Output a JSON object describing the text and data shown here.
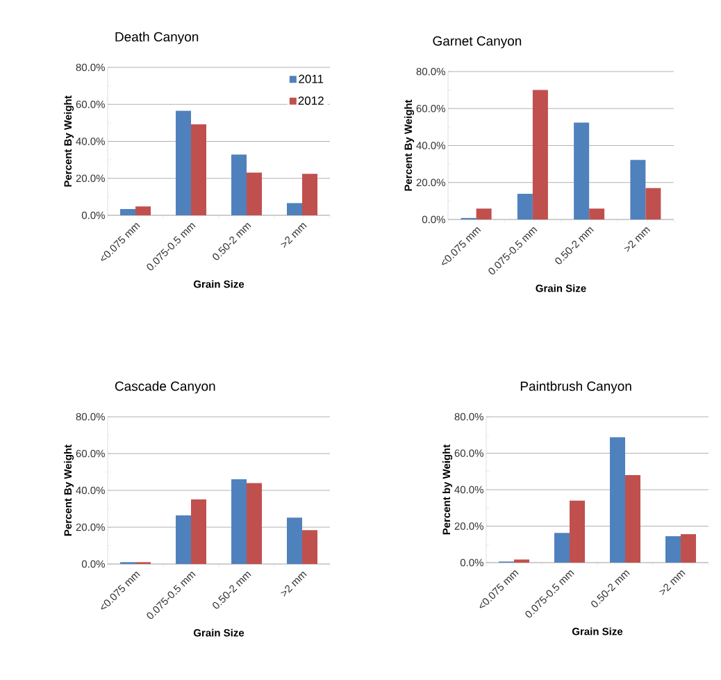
{
  "chart_data": [
    {
      "type": "bar",
      "title": "Death Canyon",
      "xlabel": "Grain Size",
      "ylabel": "Percent By Weight",
      "categories": [
        "<0.075 mm",
        "0.075-0.5 mm",
        "0.50-2 mm",
        ">2 mm"
      ],
      "ylim": [
        0,
        80
      ],
      "yticks": [
        {
          "value": 0,
          "label": "0.0%"
        },
        {
          "value": 10,
          "label": null
        },
        {
          "value": 20,
          "label": "20.0%"
        },
        {
          "value": 30,
          "label": null
        },
        {
          "value": 40,
          "label": "40.0%"
        },
        {
          "value": 50,
          "label": null
        },
        {
          "value": 60,
          "label": "60.0%"
        },
        {
          "value": 70,
          "label": null
        },
        {
          "value": 80,
          "label": "80.0%"
        }
      ],
      "grid": "y",
      "legend": "top right",
      "series": [
        {
          "name": "2011",
          "color": "#4f81bd",
          "values": [
            3.4,
            56.5,
            32.9,
            6.6
          ]
        },
        {
          "name": "2012",
          "color": "#c0504d",
          "values": [
            4.8,
            49.2,
            23.1,
            22.4
          ]
        }
      ]
    },
    {
      "type": "bar",
      "title": "Garnet Canyon",
      "xlabel": "Grain Size",
      "ylabel": "Percent By Weight",
      "categories": [
        "<0.075 mm",
        "0.075-0.5 mm",
        "0.50-2 mm",
        ">2 mm"
      ],
      "ylim": [
        0,
        80
      ],
      "yticks": [
        {
          "value": 0,
          "label": "0.0%"
        },
        {
          "value": 10,
          "label": null
        },
        {
          "value": 20,
          "label": "20.0%"
        },
        {
          "value": 30,
          "label": null
        },
        {
          "value": 40,
          "label": "40.0%"
        },
        {
          "value": 50,
          "label": null
        },
        {
          "value": 60,
          "label": "60.0%"
        },
        {
          "value": 70,
          "label": null
        },
        {
          "value": 80,
          "label": "80.0%"
        }
      ],
      "grid": "y",
      "series": [
        {
          "color": "#4f81bd",
          "values": [
            0.8,
            13.9,
            52.4,
            32.2
          ]
        },
        {
          "color": "#c0504d",
          "values": [
            5.9,
            70.0,
            5.9,
            17.0
          ]
        }
      ]
    },
    {
      "type": "bar",
      "title": "Cascade Canyon",
      "xlabel": "Grain Size",
      "ylabel": "Percent By Weight",
      "categories": [
        "<0.075 mm",
        "0.075-0.5 mm",
        "0.50-2 mm",
        ">2 mm"
      ],
      "ylim": [
        0,
        80
      ],
      "yticks": [
        {
          "value": 0,
          "label": "0.0%"
        },
        {
          "value": 10,
          "label": null
        },
        {
          "value": 20,
          "label": "20.0%"
        },
        {
          "value": 30,
          "label": null
        },
        {
          "value": 40,
          "label": "40.0%"
        },
        {
          "value": 50,
          "label": null
        },
        {
          "value": 60,
          "label": "60.0%"
        },
        {
          "value": 70,
          "label": null
        },
        {
          "value": 80,
          "label": "80.0%"
        }
      ],
      "grid": "y",
      "series": [
        {
          "color": "#4f81bd",
          "values": [
            1.0,
            26.4,
            46.0,
            25.2
          ]
        },
        {
          "color": "#c0504d",
          "values": [
            1.0,
            35.1,
            44.0,
            18.4
          ]
        }
      ]
    },
    {
      "type": "bar",
      "title": "Paintbrush Canyon",
      "xlabel": "Grain Size",
      "ylabel": "Percent by Weight",
      "categories": [
        "<0.075 mm",
        "0.075-0.5 mm",
        "0.50-2 mm",
        ">2 mm"
      ],
      "ylim": [
        0,
        80
      ],
      "yticks": [
        {
          "value": 0,
          "label": "0.0%"
        },
        {
          "value": 10,
          "label": null
        },
        {
          "value": 20,
          "label": "20.0%"
        },
        {
          "value": 30,
          "label": null
        },
        {
          "value": 40,
          "label": "40.0%"
        },
        {
          "value": 50,
          "label": null
        },
        {
          "value": 60,
          "label": "60.0%"
        },
        {
          "value": 70,
          "label": null
        },
        {
          "value": 80,
          "label": "80.0%"
        }
      ],
      "grid": "y",
      "series": [
        {
          "color": "#4f81bd",
          "values": [
            0.6,
            16.3,
            68.8,
            14.5
          ]
        },
        {
          "color": "#c0504d",
          "values": [
            1.7,
            34.0,
            48.0,
            15.6
          ]
        }
      ]
    }
  ]
}
